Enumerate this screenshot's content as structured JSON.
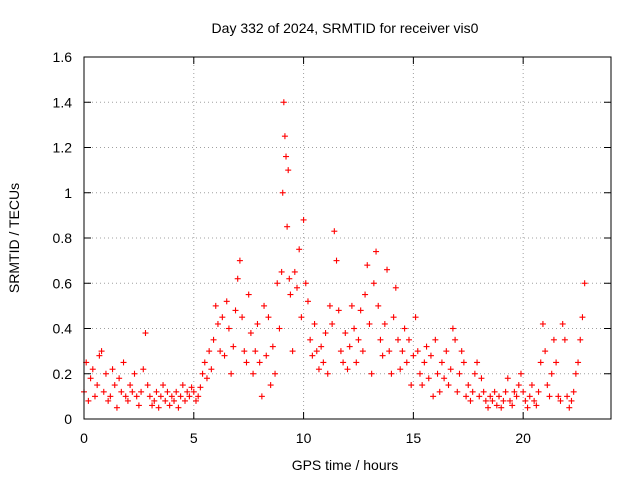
{
  "chart_data": {
    "type": "scatter",
    "title": "Day 332 of 2024, SRMTID for receiver vis0",
    "xlabel": "GPS time / hours",
    "ylabel": "SRMTID / TECUs",
    "xlim": [
      0,
      24
    ],
    "ylim": [
      0,
      1.6
    ],
    "xticks": [
      0,
      5,
      10,
      15,
      20
    ],
    "xtick_labels": [
      "0",
      "5",
      "10",
      "15",
      "20"
    ],
    "yticks": [
      0,
      0.2,
      0.4,
      0.6,
      0.8,
      1.0,
      1.2,
      1.4,
      1.6
    ],
    "ytick_labels": [
      "0",
      "0.2",
      "0.4",
      "0.6",
      "0.8",
      "1",
      "1.2",
      "1.4",
      "1.6"
    ],
    "grid": true,
    "marker": "+",
    "color": "#ff0000",
    "series": [
      {
        "name": "SRMTID",
        "x": [
          0.0,
          0.1,
          0.2,
          0.3,
          0.4,
          0.5,
          0.6,
          0.7,
          0.8,
          0.9,
          1.0,
          1.1,
          1.2,
          1.3,
          1.4,
          1.5,
          1.6,
          1.7,
          1.8,
          1.9,
          2.0,
          2.1,
          2.2,
          2.3,
          2.4,
          2.5,
          2.6,
          2.7,
          2.8,
          2.9,
          3.0,
          3.1,
          3.2,
          3.3,
          3.4,
          3.5,
          3.6,
          3.7,
          3.8,
          3.9,
          4.0,
          4.1,
          4.2,
          4.3,
          4.4,
          4.5,
          4.6,
          4.7,
          4.8,
          4.9,
          5.0,
          5.1,
          5.2,
          5.3,
          5.4,
          5.5,
          5.6,
          5.7,
          5.8,
          5.9,
          6.0,
          6.1,
          6.2,
          6.3,
          6.4,
          6.5,
          6.6,
          6.7,
          6.8,
          6.9,
          7.0,
          7.1,
          7.2,
          7.3,
          7.4,
          7.5,
          7.6,
          7.7,
          7.8,
          7.9,
          8.0,
          8.1,
          8.2,
          8.3,
          8.4,
          8.5,
          8.6,
          8.7,
          8.8,
          8.9,
          9.0,
          9.05,
          9.1,
          9.15,
          9.2,
          9.25,
          9.3,
          9.35,
          9.4,
          9.5,
          9.6,
          9.7,
          9.8,
          9.9,
          10.0,
          10.1,
          10.2,
          10.3,
          10.4,
          10.5,
          10.6,
          10.7,
          10.8,
          10.9,
          11.0,
          11.1,
          11.2,
          11.3,
          11.4,
          11.5,
          11.6,
          11.7,
          11.8,
          11.9,
          12.0,
          12.1,
          12.2,
          12.3,
          12.4,
          12.5,
          12.6,
          12.7,
          12.8,
          12.9,
          13.0,
          13.1,
          13.2,
          13.3,
          13.4,
          13.5,
          13.6,
          13.7,
          13.8,
          13.9,
          14.0,
          14.1,
          14.2,
          14.3,
          14.4,
          14.5,
          14.6,
          14.7,
          14.8,
          14.9,
          15.0,
          15.1,
          15.2,
          15.3,
          15.4,
          15.5,
          15.6,
          15.7,
          15.8,
          15.9,
          16.0,
          16.1,
          16.2,
          16.3,
          16.4,
          16.5,
          16.6,
          16.7,
          16.8,
          16.9,
          17.0,
          17.1,
          17.2,
          17.3,
          17.4,
          17.5,
          17.6,
          17.7,
          17.8,
          17.9,
          18.0,
          18.1,
          18.2,
          18.3,
          18.4,
          18.5,
          18.6,
          18.7,
          18.8,
          18.9,
          19.0,
          19.1,
          19.2,
          19.3,
          19.4,
          19.5,
          19.6,
          19.7,
          19.8,
          19.9,
          20.0,
          20.1,
          20.2,
          20.3,
          20.4,
          20.5,
          20.6,
          20.7,
          20.8,
          20.9,
          21.0,
          21.1,
          21.2,
          21.3,
          21.4,
          21.5,
          21.6,
          21.7,
          21.8,
          21.9,
          22.0,
          22.1,
          22.2,
          22.3,
          22.4,
          22.5,
          22.6,
          22.7,
          22.8
        ],
        "y": [
          0.12,
          0.25,
          0.08,
          0.18,
          0.22,
          0.1,
          0.15,
          0.28,
          0.3,
          0.12,
          0.2,
          0.08,
          0.1,
          0.22,
          0.15,
          0.05,
          0.18,
          0.12,
          0.25,
          0.1,
          0.08,
          0.15,
          0.12,
          0.2,
          0.1,
          0.06,
          0.12,
          0.22,
          0.38,
          0.15,
          0.1,
          0.06,
          0.08,
          0.12,
          0.05,
          0.1,
          0.15,
          0.08,
          0.12,
          0.06,
          0.1,
          0.08,
          0.12,
          0.05,
          0.1,
          0.15,
          0.08,
          0.12,
          0.1,
          0.14,
          0.12,
          0.08,
          0.1,
          0.14,
          0.2,
          0.25,
          0.18,
          0.3,
          0.22,
          0.35,
          0.5,
          0.42,
          0.3,
          0.45,
          0.28,
          0.52,
          0.4,
          0.2,
          0.32,
          0.48,
          0.62,
          0.7,
          0.45,
          0.3,
          0.25,
          0.55,
          0.38,
          0.2,
          0.3,
          0.42,
          0.25,
          0.1,
          0.5,
          0.28,
          0.45,
          0.15,
          0.32,
          0.2,
          0.6,
          0.4,
          0.65,
          1.0,
          1.4,
          1.25,
          1.16,
          0.85,
          1.1,
          0.62,
          0.55,
          0.3,
          0.65,
          0.58,
          0.75,
          0.45,
          0.88,
          0.6,
          0.52,
          0.35,
          0.28,
          0.42,
          0.3,
          0.22,
          0.32,
          0.25,
          0.38,
          0.2,
          0.5,
          0.42,
          0.83,
          0.7,
          0.48,
          0.3,
          0.25,
          0.38,
          0.22,
          0.32,
          0.5,
          0.4,
          0.25,
          0.35,
          0.48,
          0.3,
          0.55,
          0.68,
          0.42,
          0.2,
          0.6,
          0.74,
          0.5,
          0.35,
          0.28,
          0.42,
          0.66,
          0.3,
          0.2,
          0.45,
          0.58,
          0.35,
          0.22,
          0.3,
          0.4,
          0.25,
          0.35,
          0.15,
          0.28,
          0.45,
          0.3,
          0.2,
          0.15,
          0.25,
          0.32,
          0.18,
          0.28,
          0.1,
          0.35,
          0.2,
          0.12,
          0.25,
          0.18,
          0.3,
          0.15,
          0.22,
          0.4,
          0.35,
          0.12,
          0.2,
          0.3,
          0.25,
          0.1,
          0.15,
          0.08,
          0.12,
          0.2,
          0.25,
          0.1,
          0.18,
          0.12,
          0.08,
          0.05,
          0.1,
          0.08,
          0.12,
          0.06,
          0.1,
          0.05,
          0.08,
          0.12,
          0.18,
          0.08,
          0.06,
          0.12,
          0.1,
          0.15,
          0.2,
          0.12,
          0.08,
          0.05,
          0.1,
          0.15,
          0.08,
          0.06,
          0.12,
          0.25,
          0.42,
          0.3,
          0.15,
          0.1,
          0.2,
          0.35,
          0.25,
          0.1,
          0.08,
          0.42,
          0.35,
          0.1,
          0.05,
          0.08,
          0.12,
          0.2,
          0.25,
          0.35,
          0.45,
          0.6
        ]
      }
    ]
  }
}
